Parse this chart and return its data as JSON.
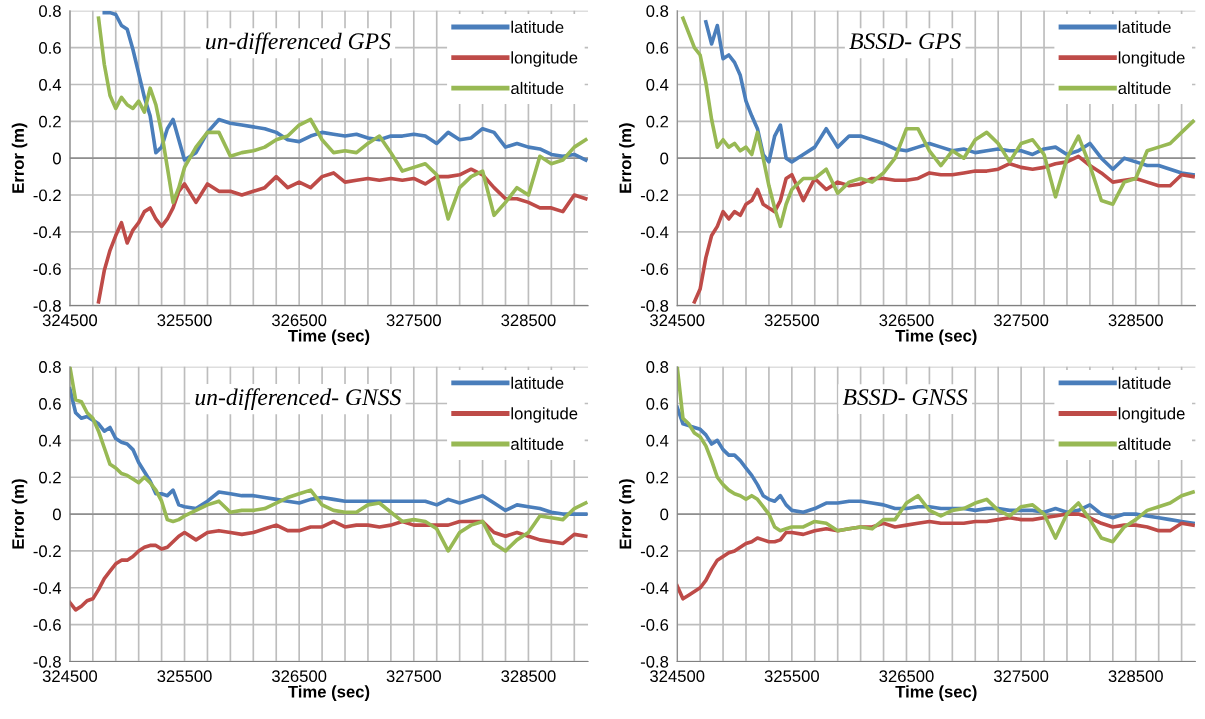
{
  "chart_data": [
    {
      "type": "line",
      "title": "un-differenced GPS",
      "xlabel": "Time (sec)",
      "ylabel": "Error (m)",
      "grid": true,
      "legend": "top right",
      "x": [
        324750,
        324800,
        324850,
        324900,
        324950,
        325000,
        325050,
        325100,
        325150,
        325200,
        325250,
        325300,
        325350,
        325400,
        325450,
        325500,
        325600,
        325700,
        325800,
        325900,
        326000,
        326100,
        326200,
        326300,
        326400,
        326500,
        326600,
        326700,
        326800,
        326900,
        327000,
        327100,
        327200,
        327300,
        327400,
        327500,
        327600,
        327700,
        327800,
        327900,
        328000,
        328100,
        328200,
        328300,
        328400,
        328500,
        328600,
        328700,
        328800,
        328900,
        329000
      ],
      "xlim": [
        324500,
        329020
      ],
      "xticks": [
        324500,
        {
          "value": 324700,
          "label": null
        },
        {
          "value": 324900,
          "label": null
        },
        {
          "value": 325100,
          "label": null
        },
        {
          "value": 325300,
          "label": null
        },
        325500,
        {
          "value": 325700,
          "label": null
        },
        {
          "value": 325900,
          "label": null
        },
        {
          "value": 326100,
          "label": null
        },
        {
          "value": 326300,
          "label": null
        },
        326500,
        {
          "value": 326700,
          "label": null
        },
        {
          "value": 326900,
          "label": null
        },
        {
          "value": 327100,
          "label": null
        },
        {
          "value": 327300,
          "label": null
        },
        327500,
        {
          "value": 327700,
          "label": null
        },
        {
          "value": 327900,
          "label": null
        },
        {
          "value": 328100,
          "label": null
        },
        {
          "value": 328300,
          "label": null
        },
        328500,
        {
          "value": 328700,
          "label": null
        },
        {
          "value": 328900,
          "label": null
        }
      ],
      "ylim": [
        -0.8,
        0.8
      ],
      "yticks": [
        -0.8,
        -0.6,
        -0.4,
        -0.2,
        0,
        0.2,
        0.4,
        0.6,
        0.8
      ],
      "series": [
        {
          "name": "latitude",
          "color": "#4a7ebb",
          "values": [
            null,
            0.79,
            0.79,
            0.78,
            0.72,
            0.7,
            0.59,
            0.46,
            0.33,
            0.23,
            0.03,
            0.06,
            0.16,
            0.21,
            0.1,
            -0.01,
            0.03,
            0.14,
            0.21,
            0.19,
            0.18,
            0.17,
            0.16,
            0.14,
            0.1,
            0.09,
            0.12,
            0.14,
            0.13,
            0.12,
            0.13,
            0.11,
            0.1,
            0.12,
            0.12,
            0.13,
            0.12,
            0.08,
            0.14,
            0.1,
            0.11,
            0.16,
            0.14,
            0.06,
            0.08,
            0.06,
            0.05,
            0.02,
            0.01,
            0.02,
            -0.01
          ]
        },
        {
          "name": "longitude",
          "color": "#be4b48",
          "values": [
            -0.78,
            -0.61,
            -0.5,
            -0.42,
            -0.35,
            -0.46,
            -0.39,
            -0.35,
            -0.29,
            -0.27,
            -0.33,
            -0.37,
            -0.33,
            -0.27,
            -0.18,
            -0.14,
            -0.24,
            -0.14,
            -0.18,
            -0.18,
            -0.2,
            -0.18,
            -0.16,
            -0.1,
            -0.16,
            -0.13,
            -0.16,
            -0.1,
            -0.08,
            -0.13,
            -0.12,
            -0.11,
            -0.12,
            -0.11,
            -0.12,
            -0.11,
            -0.14,
            -0.1,
            -0.1,
            -0.09,
            -0.06,
            -0.09,
            -0.16,
            -0.22,
            -0.22,
            -0.24,
            -0.27,
            -0.27,
            -0.29,
            -0.2,
            -0.22
          ]
        },
        {
          "name": "altitude",
          "color": "#98b954",
          "values": [
            0.76,
            0.51,
            0.34,
            0.27,
            0.33,
            0.29,
            0.27,
            0.31,
            0.25,
            0.38,
            0.29,
            0.14,
            -0.05,
            -0.24,
            -0.16,
            -0.05,
            0.06,
            0.14,
            0.14,
            0.01,
            0.03,
            0.04,
            0.06,
            0.1,
            0.12,
            0.18,
            0.21,
            0.1,
            0.03,
            0.04,
            0.03,
            0.08,
            0.12,
            0.03,
            -0.07,
            -0.05,
            -0.03,
            -0.09,
            -0.33,
            -0.16,
            -0.1,
            -0.07,
            -0.31,
            -0.24,
            -0.16,
            -0.2,
            0.01,
            -0.03,
            -0.01,
            0.06,
            0.1
          ]
        }
      ]
    },
    {
      "type": "line",
      "title": "BSSD- GPS",
      "xlabel": "Time (sec)",
      "ylabel": "Error (m)",
      "grid": true,
      "legend": "top right",
      "x": [
        324550,
        324600,
        324650,
        324700,
        324750,
        324800,
        324850,
        324900,
        324950,
        325000,
        325050,
        325100,
        325150,
        325200,
        325250,
        325300,
        325350,
        325400,
        325450,
        325500,
        325600,
        325700,
        325800,
        325900,
        326000,
        326100,
        326200,
        326300,
        326400,
        326500,
        326600,
        326700,
        326800,
        326900,
        327000,
        327100,
        327200,
        327300,
        327400,
        327500,
        327600,
        327700,
        327800,
        327900,
        328000,
        328100,
        328200,
        328300,
        328400,
        328500,
        328600,
        328700,
        328800,
        328900,
        329000
      ],
      "xlim": [
        324500,
        329020
      ],
      "xticks": [
        324500,
        {
          "value": 324700,
          "label": null
        },
        {
          "value": 324900,
          "label": null
        },
        {
          "value": 325100,
          "label": null
        },
        {
          "value": 325300,
          "label": null
        },
        325500,
        {
          "value": 325700,
          "label": null
        },
        {
          "value": 325900,
          "label": null
        },
        {
          "value": 326100,
          "label": null
        },
        {
          "value": 326300,
          "label": null
        },
        326500,
        {
          "value": 326700,
          "label": null
        },
        {
          "value": 326900,
          "label": null
        },
        {
          "value": 327100,
          "label": null
        },
        {
          "value": 327300,
          "label": null
        },
        327500,
        {
          "value": 327700,
          "label": null
        },
        {
          "value": 327900,
          "label": null
        },
        {
          "value": 328100,
          "label": null
        },
        {
          "value": 328300,
          "label": null
        },
        328500,
        {
          "value": 328700,
          "label": null
        },
        {
          "value": 328900,
          "label": null
        }
      ],
      "ylim": [
        -0.8,
        0.8
      ],
      "yticks": [
        -0.8,
        -0.6,
        -0.4,
        -0.2,
        0,
        0.2,
        0.4,
        0.6,
        0.8
      ],
      "series": [
        {
          "name": "latitude",
          "color": "#4a7ebb",
          "values": [
            null,
            null,
            null,
            null,
            0.74,
            0.62,
            0.72,
            0.54,
            0.56,
            0.52,
            0.45,
            0.31,
            0.23,
            0.16,
            0.02,
            -0.02,
            0.12,
            0.18,
            0,
            -0.02,
            0.02,
            0.06,
            0.16,
            0.06,
            0.12,
            0.12,
            0.1,
            0.08,
            0.05,
            0.04,
            0.06,
            0.08,
            0.06,
            0.04,
            0.05,
            0.03,
            0.04,
            0.05,
            0.04,
            0.04,
            0.02,
            0.05,
            0.06,
            0.02,
            0.04,
            0.08,
            0,
            -0.06,
            0,
            -0.02,
            -0.04,
            -0.04,
            -0.06,
            -0.08,
            -0.09
          ]
        },
        {
          "name": "longitude",
          "color": "#be4b48",
          "values": [
            null,
            null,
            -0.78,
            -0.71,
            -0.54,
            -0.42,
            -0.37,
            -0.29,
            -0.33,
            -0.29,
            -0.31,
            -0.25,
            -0.23,
            -0.17,
            -0.25,
            -0.27,
            -0.29,
            -0.23,
            -0.11,
            -0.09,
            -0.23,
            -0.11,
            -0.17,
            -0.13,
            -0.15,
            -0.14,
            -0.11,
            -0.11,
            -0.12,
            -0.12,
            -0.11,
            -0.08,
            -0.09,
            -0.09,
            -0.08,
            -0.07,
            -0.07,
            -0.06,
            -0.03,
            -0.05,
            -0.06,
            -0.05,
            -0.03,
            -0.02,
            0.01,
            -0.04,
            -0.08,
            -0.13,
            -0.12,
            -0.11,
            -0.13,
            -0.15,
            -0.15,
            -0.09,
            -0.1
          ]
        },
        {
          "name": "altitude",
          "color": "#98b954",
          "values": [
            0.76,
            0.68,
            0.6,
            0.56,
            0.41,
            0.21,
            0.06,
            0.1,
            0.06,
            0.08,
            0.04,
            0.06,
            0.02,
            0.14,
            0,
            -0.15,
            -0.27,
            -0.37,
            -0.25,
            -0.17,
            -0.11,
            -0.11,
            -0.06,
            -0.19,
            -0.13,
            -0.11,
            -0.13,
            -0.08,
            0,
            0.16,
            0.16,
            0.04,
            -0.04,
            0.04,
            0,
            0.1,
            0.14,
            0.08,
            -0.02,
            0.08,
            0.1,
            0.02,
            -0.21,
            0,
            0.12,
            -0.04,
            -0.23,
            -0.25,
            -0.13,
            -0.11,
            0.04,
            0.06,
            0.08,
            0.14,
            0.2
          ]
        }
      ]
    },
    {
      "type": "line",
      "title": "un-differenced- GNSS",
      "xlabel": "Time (sec)",
      "ylabel": "Error (m)",
      "grid": true,
      "legend": "top right",
      "x": [
        324500,
        324550,
        324600,
        324650,
        324700,
        324750,
        324800,
        324850,
        324900,
        324950,
        325000,
        325050,
        325100,
        325150,
        325200,
        325250,
        325300,
        325350,
        325400,
        325450,
        325500,
        325600,
        325700,
        325800,
        325900,
        326000,
        326100,
        326200,
        326300,
        326400,
        326500,
        326600,
        326700,
        326800,
        326900,
        327000,
        327100,
        327200,
        327300,
        327400,
        327500,
        327600,
        327700,
        327800,
        327900,
        328000,
        328100,
        328200,
        328300,
        328400,
        328500,
        328600,
        328700,
        328800,
        328900,
        329000
      ],
      "xlim": [
        324500,
        329020
      ],
      "xticks": [
        324500,
        {
          "value": 324700,
          "label": null
        },
        {
          "value": 324900,
          "label": null
        },
        {
          "value": 325100,
          "label": null
        },
        {
          "value": 325300,
          "label": null
        },
        325500,
        {
          "value": 325700,
          "label": null
        },
        {
          "value": 325900,
          "label": null
        },
        {
          "value": 326100,
          "label": null
        },
        {
          "value": 326300,
          "label": null
        },
        326500,
        {
          "value": 326700,
          "label": null
        },
        {
          "value": 326900,
          "label": null
        },
        {
          "value": 327100,
          "label": null
        },
        {
          "value": 327300,
          "label": null
        },
        327500,
        {
          "value": 327700,
          "label": null
        },
        {
          "value": 327900,
          "label": null
        },
        {
          "value": 328100,
          "label": null
        },
        {
          "value": 328300,
          "label": null
        },
        328500,
        {
          "value": 328700,
          "label": null
        },
        {
          "value": 328900,
          "label": null
        }
      ],
      "ylim": [
        -0.8,
        0.8
      ],
      "yticks": [
        -0.8,
        -0.6,
        -0.4,
        -0.2,
        0,
        0.2,
        0.4,
        0.6,
        0.8
      ],
      "series": [
        {
          "name": "latitude",
          "color": "#4a7ebb",
          "values": [
            0.68,
            0.55,
            0.52,
            0.53,
            0.51,
            0.49,
            0.45,
            0.47,
            0.41,
            0.39,
            0.38,
            0.35,
            0.28,
            0.23,
            0.18,
            0.11,
            0.11,
            0.1,
            0.13,
            0.05,
            0.04,
            0.03,
            0.07,
            0.12,
            0.11,
            0.1,
            0.1,
            0.09,
            0.08,
            0.07,
            0.06,
            0.08,
            0.09,
            0.08,
            0.07,
            0.07,
            0.07,
            0.07,
            0.07,
            0.07,
            0.07,
            0.07,
            0.05,
            0.08,
            0.06,
            0.08,
            0.1,
            0.06,
            0.02,
            0.05,
            0.04,
            0.03,
            0.01,
            0,
            0,
            0
          ]
        },
        {
          "name": "longitude",
          "color": "#be4b48",
          "values": [
            -0.48,
            -0.52,
            -0.5,
            -0.47,
            -0.46,
            -0.41,
            -0.35,
            -0.31,
            -0.27,
            -0.25,
            -0.25,
            -0.23,
            -0.2,
            -0.18,
            -0.17,
            -0.17,
            -0.19,
            -0.18,
            -0.15,
            -0.12,
            -0.1,
            -0.14,
            -0.1,
            -0.09,
            -0.1,
            -0.11,
            -0.1,
            -0.08,
            -0.06,
            -0.09,
            -0.09,
            -0.07,
            -0.07,
            -0.04,
            -0.07,
            -0.06,
            -0.06,
            -0.07,
            -0.06,
            -0.04,
            -0.06,
            -0.06,
            -0.06,
            -0.06,
            -0.04,
            -0.04,
            -0.04,
            -0.1,
            -0.12,
            -0.1,
            -0.12,
            -0.14,
            -0.15,
            -0.16,
            -0.11,
            -0.12
          ]
        },
        {
          "name": "altitude",
          "color": "#98b954",
          "values": [
            0.8,
            0.62,
            0.61,
            0.55,
            0.52,
            0.45,
            0.36,
            0.27,
            0.25,
            0.22,
            0.21,
            0.19,
            0.17,
            0.2,
            0.17,
            0.13,
            0.07,
            -0.03,
            -0.04,
            -0.03,
            -0.01,
            0.02,
            0.05,
            0.07,
            0.01,
            0.02,
            0.02,
            0.03,
            0.06,
            0.09,
            0.11,
            0.13,
            0.05,
            0.02,
            0.01,
            0.01,
            0.05,
            0.06,
            0.01,
            -0.04,
            -0.03,
            -0.04,
            -0.08,
            -0.2,
            -0.1,
            -0.06,
            -0.04,
            -0.16,
            -0.2,
            -0.14,
            -0.1,
            -0.01,
            -0.02,
            -0.03,
            0.03,
            0.06
          ]
        }
      ]
    },
    {
      "type": "line",
      "title": "BSSD- GNSS",
      "xlabel": "Time (sec)",
      "ylabel": "Error (m)",
      "grid": true,
      "legend": "top right",
      "x": [
        324500,
        324550,
        324600,
        324650,
        324700,
        324750,
        324800,
        324850,
        324900,
        324950,
        325000,
        325050,
        325100,
        325150,
        325200,
        325250,
        325300,
        325350,
        325400,
        325450,
        325500,
        325600,
        325700,
        325800,
        325900,
        326000,
        326100,
        326200,
        326300,
        326400,
        326500,
        326600,
        326700,
        326800,
        326900,
        327000,
        327100,
        327200,
        327300,
        327400,
        327500,
        327600,
        327700,
        327800,
        327900,
        328000,
        328100,
        328200,
        328300,
        328400,
        328500,
        328600,
        328700,
        328800,
        328900,
        329000
      ],
      "xlim": [
        324500,
        329020
      ],
      "xticks": [
        324500,
        {
          "value": 324700,
          "label": null
        },
        {
          "value": 324900,
          "label": null
        },
        {
          "value": 325100,
          "label": null
        },
        {
          "value": 325300,
          "label": null
        },
        325500,
        {
          "value": 325700,
          "label": null
        },
        {
          "value": 325900,
          "label": null
        },
        {
          "value": 326100,
          "label": null
        },
        {
          "value": 326300,
          "label": null
        },
        326500,
        {
          "value": 326700,
          "label": null
        },
        {
          "value": 326900,
          "label": null
        },
        {
          "value": 327100,
          "label": null
        },
        {
          "value": 327300,
          "label": null
        },
        327500,
        {
          "value": 327700,
          "label": null
        },
        {
          "value": 327900,
          "label": null
        },
        {
          "value": 328100,
          "label": null
        },
        {
          "value": 328300,
          "label": null
        },
        328500,
        {
          "value": 328700,
          "label": null
        },
        {
          "value": 328900,
          "label": null
        }
      ],
      "ylim": [
        -0.8,
        0.8
      ],
      "yticks": [
        -0.8,
        -0.6,
        -0.4,
        -0.2,
        0,
        0.2,
        0.4,
        0.6,
        0.8
      ],
      "series": [
        {
          "name": "latitude",
          "color": "#4a7ebb",
          "values": [
            0.58,
            0.49,
            0.48,
            0.47,
            0.46,
            0.43,
            0.38,
            0.4,
            0.35,
            0.32,
            0.32,
            0.29,
            0.25,
            0.21,
            0.16,
            0.1,
            0.08,
            0.07,
            0.1,
            0.05,
            0.02,
            0.01,
            0.03,
            0.06,
            0.06,
            0.07,
            0.07,
            0.06,
            0.05,
            0.03,
            0.03,
            0.04,
            0.04,
            0.03,
            0.03,
            0.03,
            0.02,
            0.03,
            0.03,
            0.02,
            0.02,
            0.02,
            0.01,
            0.03,
            0.01,
            0.02,
            0.05,
            0,
            -0.02,
            0,
            0,
            -0.01,
            -0.02,
            -0.03,
            -0.04,
            -0.05
          ]
        },
        {
          "name": "longitude",
          "color": "#be4b48",
          "values": [
            -0.39,
            -0.46,
            -0.44,
            -0.42,
            -0.4,
            -0.36,
            -0.3,
            -0.25,
            -0.23,
            -0.21,
            -0.2,
            -0.18,
            -0.16,
            -0.15,
            -0.13,
            -0.14,
            -0.15,
            -0.15,
            -0.14,
            -0.1,
            -0.1,
            -0.11,
            -0.09,
            -0.08,
            -0.09,
            -0.08,
            -0.07,
            -0.07,
            -0.05,
            -0.07,
            -0.06,
            -0.05,
            -0.04,
            -0.05,
            -0.05,
            -0.05,
            -0.04,
            -0.04,
            -0.03,
            -0.02,
            -0.03,
            -0.03,
            -0.02,
            -0.01,
            0,
            0,
            -0.02,
            -0.05,
            -0.07,
            -0.06,
            -0.06,
            -0.07,
            -0.09,
            -0.09,
            -0.05,
            -0.06
          ]
        },
        {
          "name": "altitude",
          "color": "#98b954",
          "values": [
            0.8,
            0.52,
            0.49,
            0.44,
            0.42,
            0.37,
            0.29,
            0.2,
            0.16,
            0.13,
            0.11,
            0.1,
            0.08,
            0.1,
            0.08,
            0.04,
            0,
            -0.07,
            -0.09,
            -0.08,
            -0.07,
            -0.07,
            -0.04,
            -0.05,
            -0.09,
            -0.08,
            -0.07,
            -0.08,
            -0.03,
            -0.03,
            0.06,
            0.1,
            0.02,
            -0.01,
            0.02,
            0.03,
            0.06,
            0.08,
            0.02,
            -0.01,
            0.04,
            0.05,
            0,
            -0.13,
            0,
            0.06,
            -0.03,
            -0.13,
            -0.15,
            -0.07,
            -0.03,
            0.02,
            0.04,
            0.06,
            0.1,
            0.12
          ]
        }
      ]
    }
  ]
}
